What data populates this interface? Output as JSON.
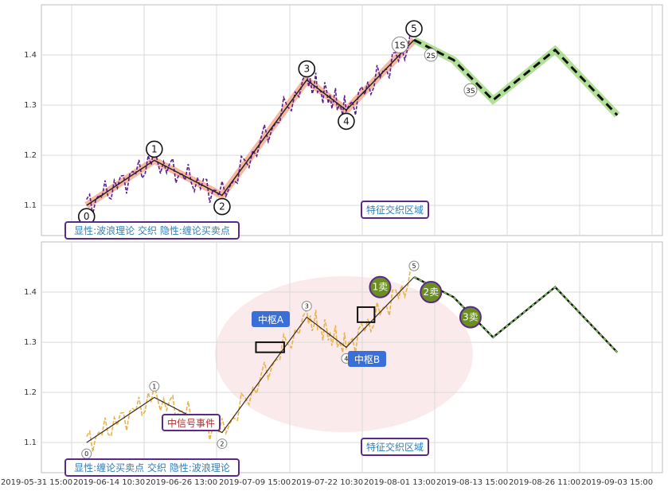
{
  "chart_data": [
    {
      "type": "line",
      "xlim_labels": [
        "2019-05-31 15:00",
        "2019-06-14 10:30",
        "2019-06-26 13:00",
        "2019-07-09 15:00",
        "2019-07-22 10:30",
        "2019-08-01 13:00",
        "2019-08-13 15:00",
        "2019-08-26 11:00",
        "2019-09-03 15:00"
      ],
      "ylim": [
        1.04,
        1.5
      ],
      "yticks": [
        "1.1",
        "1.2",
        "1.3",
        "1.4"
      ],
      "grid": true,
      "wave_points": [
        {
          "label": "0",
          "x": 0.8,
          "y": 1.1
        },
        {
          "label": "1",
          "x": 2.0,
          "y": 1.19
        },
        {
          "label": "2",
          "x": 3.2,
          "y": 1.12
        },
        {
          "label": "3",
          "x": 4.7,
          "y": 1.35
        },
        {
          "label": "4",
          "x": 5.4,
          "y": 1.29
        },
        {
          "label": "5",
          "x": 6.6,
          "y": 1.43
        }
      ],
      "forecast_path": [
        {
          "x": 6.6,
          "y": 1.43
        },
        {
          "x": 7.3,
          "y": 1.39
        },
        {
          "x": 8.0,
          "y": 1.31
        },
        {
          "x": 9.1,
          "y": 1.41
        },
        {
          "x": 10.2,
          "y": 1.28
        }
      ],
      "sell_labels": [
        "1S",
        "2S",
        "3S"
      ],
      "zone_label": "特征交织区域",
      "legend": "显性:波浪理论 交织 隐性:缠论买卖点"
    },
    {
      "type": "line",
      "xlim_labels": [
        "2019-05-31 15:00",
        "2019-06-14 10:30",
        "2019-06-26 13:00",
        "2019-07-09 15:00",
        "2019-07-22 10:30",
        "2019-08-01 13:00",
        "2019-08-13 15:00",
        "2019-08-26 11:00",
        "2019-09-03 15:00"
      ],
      "ylim": [
        1.04,
        1.5
      ],
      "yticks": [
        "1.1",
        "1.2",
        "1.3",
        "1.4"
      ],
      "grid": true,
      "wave_points": [
        {
          "label": "0",
          "x": 0.8,
          "y": 1.1
        },
        {
          "label": "1",
          "x": 2.0,
          "y": 1.19
        },
        {
          "label": "2",
          "x": 3.2,
          "y": 1.12
        },
        {
          "label": "3",
          "x": 4.7,
          "y": 1.35
        },
        {
          "label": "4",
          "x": 5.4,
          "y": 1.29
        },
        {
          "label": "5",
          "x": 6.6,
          "y": 1.43
        }
      ],
      "sell_points": [
        {
          "label": "1卖",
          "x": 6.0,
          "y": 1.41
        },
        {
          "label": "2卖",
          "x": 6.9,
          "y": 1.4
        },
        {
          "label": "3卖",
          "x": 7.6,
          "y": 1.35
        }
      ],
      "pivots": [
        {
          "label": "中枢A",
          "x0": 3.8,
          "x1": 4.3,
          "y0": 1.28,
          "y1": 1.3
        },
        {
          "label": "中枢B",
          "x0": 5.6,
          "x1": 5.9,
          "y0": 1.34,
          "y1": 1.37
        }
      ],
      "event_label": "中信号事件",
      "zone_label": "特征交织区域",
      "legend": "显性:缠论买卖点 交织 隐性:波浪理论"
    }
  ],
  "colors": {
    "price": "#5b1a8f",
    "price2": "#e8b44a",
    "wave_band": "#f4a58a",
    "forecast": "#7ecb55",
    "sell_green": "#6b8e23",
    "label_blue": "#3a6fd8",
    "zone_border": "#5b2a86",
    "zone_text": "#2f7fb8",
    "event_red": "#b03030",
    "ellipse": "#f7d9dd"
  }
}
